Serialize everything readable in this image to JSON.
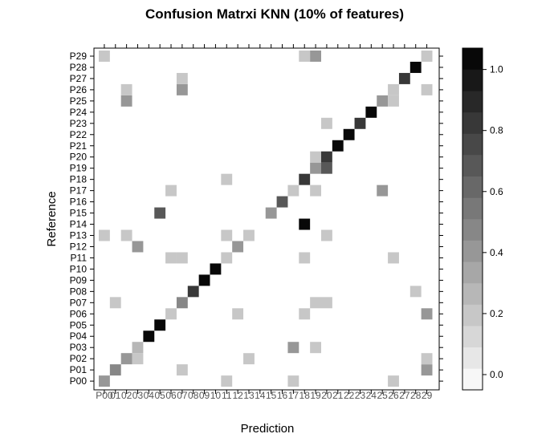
{
  "chart_data": {
    "type": "heatmap",
    "title": "Confusion Matrxi KNN (10% of features)",
    "xlabel": "Prediction",
    "ylabel": "Reference",
    "x_categories": [
      "P00",
      "P01",
      "P02",
      "P03",
      "P04",
      "P05",
      "P06",
      "P07",
      "P08",
      "P09",
      "P10",
      "P11",
      "P12",
      "P13",
      "P14",
      "P15",
      "P16",
      "P17",
      "P18",
      "P19",
      "P20",
      "P21",
      "P22",
      "P23",
      "P24",
      "P25",
      "P26",
      "P27",
      "P28",
      "P29"
    ],
    "x_tick_labels": [
      "P00",
      "01",
      "02",
      "03",
      "04",
      "05",
      "06",
      "07",
      "08",
      "09",
      "10",
      "11",
      "12",
      "13",
      "14",
      "15",
      "16",
      "17",
      "18",
      "19",
      "20",
      "21",
      "22",
      "23",
      "24",
      "25",
      "26",
      "27",
      "28",
      "29"
    ],
    "y_categories": [
      "P00",
      "P01",
      "P02",
      "P03",
      "P04",
      "P05",
      "P06",
      "P07",
      "P08",
      "P09",
      "P10",
      "P11",
      "P12",
      "P13",
      "P14",
      "P15",
      "P16",
      "P17",
      "P18",
      "P19",
      "P20",
      "P21",
      "P22",
      "P23",
      "P24",
      "P25",
      "P26",
      "P27",
      "P28",
      "P29"
    ],
    "cells": [
      [
        "P00",
        "P00",
        0.4
      ],
      [
        "P00",
        "P11",
        0.2
      ],
      [
        "P00",
        "P17",
        0.2
      ],
      [
        "P00",
        "P26",
        0.2
      ],
      [
        "P01",
        "P01",
        0.5
      ],
      [
        "P01",
        "P07",
        0.2
      ],
      [
        "P01",
        "P29",
        0.4
      ],
      [
        "P02",
        "P02",
        0.4
      ],
      [
        "P02",
        "P03",
        0.2
      ],
      [
        "P02",
        "P13",
        0.2
      ],
      [
        "P02",
        "P29",
        0.2
      ],
      [
        "P03",
        "P03",
        0.3
      ],
      [
        "P03",
        "P17",
        0.4
      ],
      [
        "P03",
        "P19",
        0.2
      ],
      [
        "P04",
        "P04",
        1.0
      ],
      [
        "P05",
        "P05",
        1.0
      ],
      [
        "P06",
        "P06",
        0.2
      ],
      [
        "P06",
        "P12",
        0.2
      ],
      [
        "P06",
        "P18",
        0.2
      ],
      [
        "P06",
        "P29",
        0.4
      ],
      [
        "P07",
        "P01",
        0.2
      ],
      [
        "P07",
        "P07",
        0.5
      ],
      [
        "P07",
        "P19",
        0.2
      ],
      [
        "P07",
        "P20",
        0.2
      ],
      [
        "P08",
        "P08",
        0.8
      ],
      [
        "P08",
        "P28",
        0.2
      ],
      [
        "P09",
        "P09",
        1.0
      ],
      [
        "P10",
        "P10",
        1.0
      ],
      [
        "P11",
        "P06",
        0.2
      ],
      [
        "P11",
        "P07",
        0.2
      ],
      [
        "P11",
        "P11",
        0.2
      ],
      [
        "P11",
        "P18",
        0.2
      ],
      [
        "P11",
        "P26",
        0.2
      ],
      [
        "P12",
        "P03",
        0.4
      ],
      [
        "P12",
        "P12",
        0.4
      ],
      [
        "P13",
        "P00",
        0.2
      ],
      [
        "P13",
        "P02",
        0.2
      ],
      [
        "P13",
        "P11",
        0.2
      ],
      [
        "P13",
        "P13",
        0.2
      ],
      [
        "P13",
        "P20",
        0.2
      ],
      [
        "P14",
        "P18",
        1.0
      ],
      [
        "P15",
        "P05",
        0.7
      ],
      [
        "P15",
        "P15",
        0.4
      ],
      [
        "P16",
        "P16",
        0.7
      ],
      [
        "P17",
        "P06",
        0.2
      ],
      [
        "P17",
        "P17",
        0.2
      ],
      [
        "P17",
        "P19",
        0.2
      ],
      [
        "P17",
        "P25",
        0.4
      ],
      [
        "P18",
        "P11",
        0.2
      ],
      [
        "P18",
        "P18",
        0.8
      ],
      [
        "P19",
        "P19",
        0.4
      ],
      [
        "P19",
        "P20",
        0.7
      ],
      [
        "P20",
        "P19",
        0.2
      ],
      [
        "P20",
        "P20",
        0.8
      ],
      [
        "P21",
        "P21",
        1.0
      ],
      [
        "P22",
        "P22",
        1.0
      ],
      [
        "P23",
        "P20",
        0.2
      ],
      [
        "P23",
        "P23",
        0.8
      ],
      [
        "P24",
        "P24",
        1.0
      ],
      [
        "P25",
        "P02",
        0.4
      ],
      [
        "P25",
        "P25",
        0.4
      ],
      [
        "P25",
        "P26",
        0.2
      ],
      [
        "P26",
        "P02",
        0.2
      ],
      [
        "P26",
        "P07",
        0.4
      ],
      [
        "P26",
        "P26",
        0.2
      ],
      [
        "P26",
        "P29",
        0.2
      ],
      [
        "P27",
        "P07",
        0.2
      ],
      [
        "P27",
        "P27",
        0.8
      ],
      [
        "P28",
        "P28",
        1.0
      ],
      [
        "P29",
        "P00",
        0.2
      ],
      [
        "P29",
        "P18",
        0.2
      ],
      [
        "P29",
        "P19",
        0.4
      ],
      [
        "P29",
        "P29",
        0.2
      ]
    ],
    "colorbar": {
      "ticks": [
        "0.0",
        "0.2",
        "0.4",
        "0.6",
        "0.8",
        "1.0"
      ],
      "tick_values": [
        0.0,
        0.2,
        0.4,
        0.6,
        0.8,
        1.0
      ],
      "range": [
        -0.05,
        1.07
      ],
      "levels": 16
    },
    "colors": {
      "low": "#ffffff",
      "high": "#000000",
      "frame": "#000000",
      "text": "#000000",
      "tick_text": "#555555"
    },
    "grid": false,
    "legend_position": "right"
  }
}
